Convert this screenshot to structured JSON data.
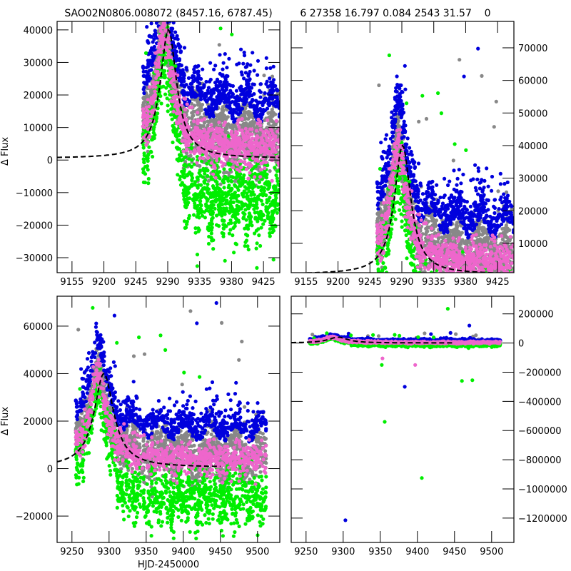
{
  "figure": {
    "title_left": "SAO02N0806.008072 (8457.16, 6787.45)",
    "title_right": "6 27358 16.797 0.084 2543 31.57    0",
    "ylabel": "Δ Flux",
    "xlabel": "HJD-2450000"
  },
  "colors": {
    "gray": "#888888",
    "blue": "#0000dd",
    "green": "#00ee00",
    "pink": "#ee66cc",
    "model": "#000000"
  },
  "chart_data": [
    {
      "id": "top-left",
      "type": "scatter",
      "title": "SAO02N0806.008072 (8457.16, 6787.45)",
      "xlabel": "",
      "ylabel": "Δ Flux",
      "xlim": [
        9134,
        9448
      ],
      "ylim": [
        -34600,
        42600
      ],
      "xticks": [
        9155,
        9200,
        9245,
        9290,
        9335,
        9380,
        9425
      ],
      "yticks": [
        -30000,
        -20000,
        -10000,
        0,
        10000,
        20000,
        30000,
        40000
      ],
      "ytick_side": "left",
      "grid": false,
      "model": {
        "peak_x": 9291,
        "peak_y": 40000,
        "baseline": 500,
        "width": 14,
        "x_range": [
          9134,
          9448
        ]
      },
      "data": {
        "start": 9255,
        "end": 9448,
        "peak_x": 9285,
        "scale": 1.0,
        "offset_green": -9000,
        "blue_offset": 8000,
        "base_gray": 2000
      }
    },
    {
      "id": "top-right",
      "type": "scatter",
      "title": "6 27358 16.797 0.084 2543 31.57    0",
      "xlabel": "",
      "ylabel": "",
      "xlim": [
        9134,
        9448
      ],
      "ylim": [
        1000,
        78100
      ],
      "xticks": [
        9155,
        9200,
        9245,
        9290,
        9335,
        9380,
        9425
      ],
      "yticks": [
        10000,
        20000,
        30000,
        40000,
        50000,
        60000,
        70000
      ],
      "ytick_side": "right",
      "grid": false,
      "model": {
        "peak_x": 9291,
        "peak_y": 40000,
        "baseline": 500,
        "width": 14,
        "x_range": [
          9134,
          9448
        ]
      },
      "data": {
        "start": 9255,
        "end": 9448,
        "peak_x": 9285,
        "scale": 1.0,
        "offset_green": -9000,
        "blue_offset": 8000,
        "base_gray": 2000
      }
    },
    {
      "id": "bottom-left",
      "type": "scatter",
      "title": "",
      "xlabel": "HJD-2450000",
      "ylabel": "Δ Flux",
      "xlim": [
        9230,
        9530
      ],
      "ylim": [
        -31100,
        72600
      ],
      "xticks": [
        9250,
        9300,
        9350,
        9400,
        9450,
        9500
      ],
      "yticks": [
        -20000,
        0,
        20000,
        40000,
        60000
      ],
      "ytick_side": "left",
      "grid": false,
      "model": {
        "peak_x": 9293,
        "peak_y": 40000,
        "baseline": 500,
        "width": 16,
        "x_range": [
          9230,
          9450
        ]
      },
      "data": {
        "start": 9255,
        "end": 9512,
        "peak_x": 9285,
        "scale": 1.0,
        "offset_green": -9000,
        "blue_offset": 8000,
        "base_gray": 2000
      }
    },
    {
      "id": "bottom-right",
      "type": "scatter",
      "title": "",
      "xlabel": "",
      "ylabel": "",
      "xlim": [
        9230,
        9530
      ],
      "ylim": [
        -1367000,
        321000
      ],
      "xticks": [
        9250,
        9300,
        9350,
        9400,
        9450,
        9500
      ],
      "yticks": [
        -1200000,
        -1000000,
        -800000,
        -600000,
        -400000,
        -200000,
        0,
        200000
      ],
      "ytick_side": "right",
      "grid": false,
      "model": {
        "peak_x": 9293,
        "peak_y": 40000,
        "baseline": 500,
        "width": 16,
        "x_range": [
          9230,
          9450
        ]
      },
      "data": {
        "start": 9255,
        "end": 9512,
        "peak_x": 9285,
        "scale": 1.0,
        "offset_green": -9000,
        "blue_offset": 8000,
        "base_gray": 2000
      },
      "outliers": [
        {
          "x": 9303,
          "y": -1215000,
          "series": "blue"
        },
        {
          "x": 9406,
          "y": -925000,
          "series": "green"
        },
        {
          "x": 9356,
          "y": -540000,
          "series": "green"
        },
        {
          "x": 9383,
          "y": -300000,
          "series": "blue"
        },
        {
          "x": 9460,
          "y": -260000,
          "series": "green"
        },
        {
          "x": 9474,
          "y": -255000,
          "series": "green"
        },
        {
          "x": 9352,
          "y": -150000,
          "series": "green"
        },
        {
          "x": 9353,
          "y": -105000,
          "series": "pink"
        },
        {
          "x": 9397,
          "y": -150000,
          "series": "pink"
        },
        {
          "x": 9441,
          "y": 235000,
          "series": "green"
        },
        {
          "x": 9470,
          "y": 120000,
          "series": "blue"
        }
      ]
    }
  ],
  "series_names": [
    "gray",
    "blue",
    "green",
    "pink"
  ]
}
